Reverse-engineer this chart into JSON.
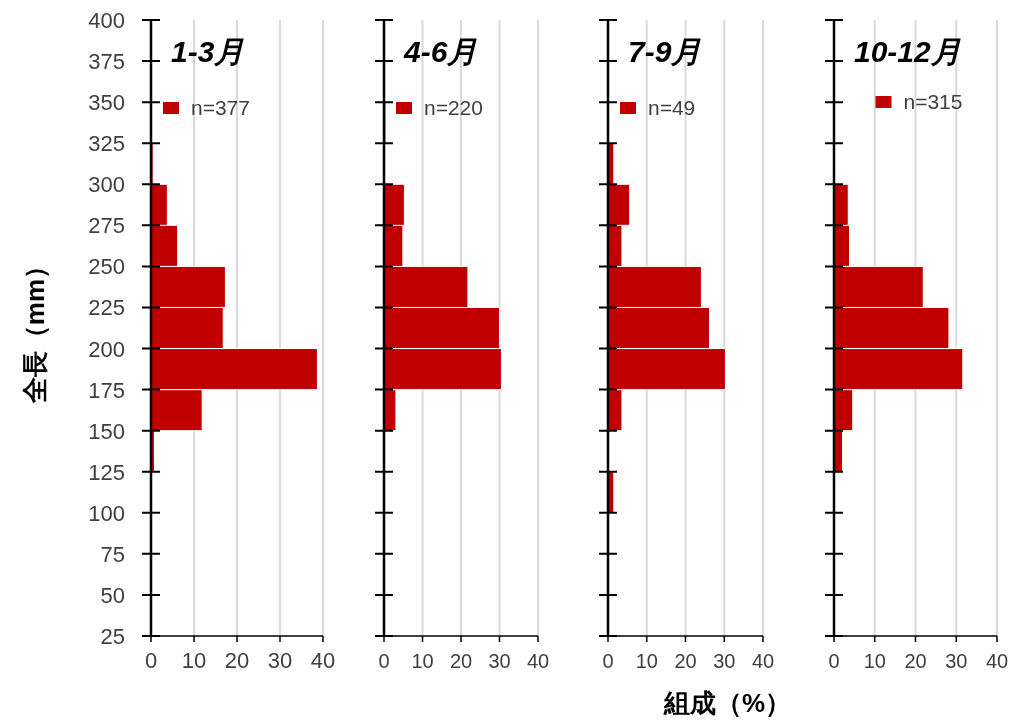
{
  "chart_data": [
    {
      "type": "histogram",
      "orientation": "horizontal",
      "title": "1-3月",
      "ylabel": "全長（mm）",
      "bins": [
        25,
        50,
        75,
        100,
        125,
        150,
        175,
        200,
        225,
        250,
        275,
        300,
        325,
        350,
        375,
        400
      ],
      "series": [
        {
          "name": "n=377",
          "color": "#c00000",
          "values": [
            0,
            0,
            0,
            0,
            0.8,
            11.9,
            38.7,
            16.8,
            17.3,
            6.2,
            3.8,
            0.5,
            0,
            0,
            0
          ]
        }
      ],
      "xlim": [
        0,
        40
      ],
      "xticks": [
        0,
        10,
        20,
        30,
        40
      ],
      "ylim": [
        25,
        400
      ],
      "yticks": [
        25,
        50,
        75,
        100,
        125,
        150,
        175,
        200,
        225,
        250,
        275,
        300,
        325,
        350,
        375,
        400
      ],
      "grid": "x",
      "legend": "top left"
    },
    {
      "type": "histogram",
      "orientation": "horizontal",
      "title": "4-6月",
      "bins": [
        25,
        50,
        75,
        100,
        125,
        150,
        175,
        200,
        225,
        250,
        275,
        300,
        325,
        350,
        375,
        400
      ],
      "series": [
        {
          "name": "n=220",
          "color": "#c00000",
          "values": [
            0,
            0,
            0,
            0,
            0,
            3.1,
            30.5,
            30.0,
            21.8,
            4.9,
            5.3,
            0,
            0.5,
            0,
            0
          ]
        }
      ],
      "xlim": [
        0,
        40
      ],
      "xticks": [
        0,
        10,
        20,
        30,
        40
      ],
      "ylim": [
        25,
        400
      ],
      "yticks": [
        25,
        50,
        75,
        100,
        125,
        150,
        175,
        200,
        225,
        250,
        275,
        300,
        325,
        350,
        375,
        400
      ],
      "grid": "x",
      "legend": "top left",
      "tick_labels": "x"
    },
    {
      "type": "histogram",
      "orientation": "horizontal",
      "title": "7-9月",
      "xlabel": "組成（%）",
      "bins": [
        25,
        50,
        75,
        100,
        125,
        150,
        175,
        200,
        225,
        250,
        275,
        300,
        325,
        350,
        375,
        400
      ],
      "series": [
        {
          "name": "n=49",
          "color": "#c00000",
          "values": [
            0,
            0,
            0,
            1.5,
            0,
            3.6,
            30.3,
            26.2,
            24.1,
            3.6,
            5.6,
            1.5,
            0,
            0,
            0
          ]
        }
      ],
      "xlim": [
        0,
        40
      ],
      "xticks": [
        0,
        10,
        20,
        30,
        40
      ],
      "ylim": [
        25,
        400
      ],
      "yticks": [
        25,
        50,
        75,
        100,
        125,
        150,
        175,
        200,
        225,
        250,
        275,
        300,
        325,
        350,
        375,
        400
      ],
      "grid": "x",
      "legend": "top left",
      "tick_labels": "x"
    },
    {
      "type": "histogram",
      "orientation": "horizontal",
      "title": "10-12月",
      "bins": [
        25,
        50,
        75,
        100,
        125,
        150,
        175,
        200,
        225,
        250,
        275,
        300,
        325,
        350,
        375,
        400
      ],
      "series": [
        {
          "name": "n=315",
          "color": "#c00000",
          "values": [
            0,
            0,
            0,
            0,
            2.1,
            4.6,
            31.6,
            28.2,
            21.9,
            3.8,
            3.5,
            0,
            0,
            0,
            0
          ]
        }
      ],
      "xlim": [
        0,
        40
      ],
      "xticks": [
        0,
        10,
        20,
        30,
        40
      ],
      "ylim": [
        25,
        400
      ],
      "yticks": [
        25,
        50,
        75,
        100,
        125,
        150,
        175,
        200,
        225,
        250,
        275,
        300,
        325,
        350,
        375,
        400
      ],
      "grid": "x",
      "legend": "top",
      "tick_labels": "x"
    }
  ]
}
